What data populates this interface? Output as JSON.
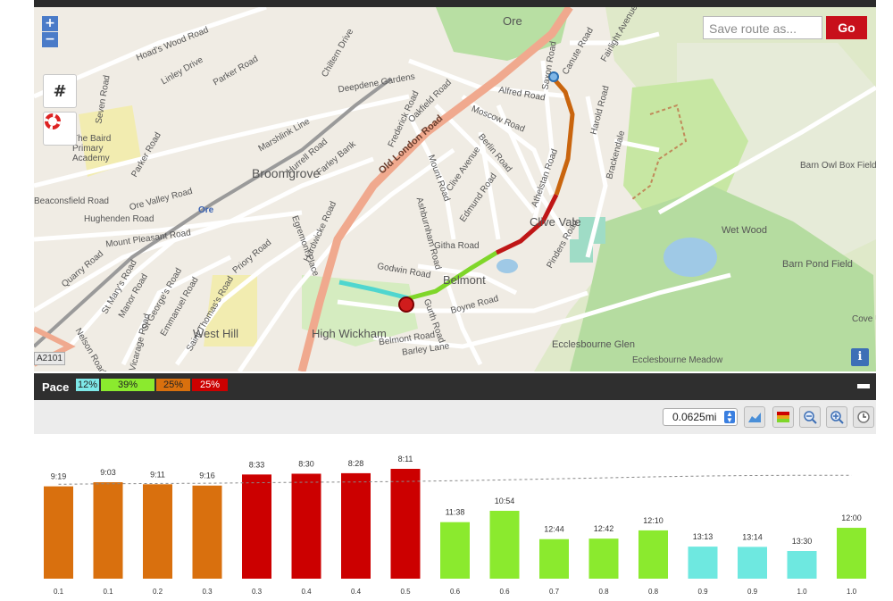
{
  "map": {
    "zoom_in_label": "+",
    "zoom_out_label": "−",
    "save_placeholder": "Save route as...",
    "go_label": "Go",
    "info_label": "i",
    "scale_badge": "A2101",
    "places": [
      "Ore",
      "Broomgrove",
      "Clive Vale",
      "Belmont",
      "High Wickham",
      "West Hill",
      "Ecclesbourne Glen",
      "Wet Wood",
      "Barn Pond Field",
      "Barn Owl Box Field",
      "The Baird Primary Academy",
      "Ore",
      "Ecclesbourne Meadow",
      "Cove Unde"
    ],
    "roads": [
      "Hoad's Wood Road",
      "Linley Drive",
      "Parker Road",
      "Chiltern Drive",
      "Deepdene Gardens",
      "Oakfield Road",
      "Frederick Road",
      "Old London Road",
      "Alfred Road",
      "Moscow Road",
      "Berlin Road",
      "Clive Avenue",
      "Mount Road",
      "Edmund Road",
      "Athelstan Road",
      "Githa Road",
      "Godwin Road",
      "Boyne Road",
      "Gurth Road",
      "Belmont Road",
      "Barley Lane",
      "Pinders Road",
      "Harold Road",
      "Brackendale",
      "Saxon Road",
      "Canute Road",
      "Fairlight Avenue",
      "Hughenden Road",
      "Beaconsfield Road",
      "Mount Pleasant Road",
      "Quarry Road",
      "St Mary's Road",
      "Manor Road",
      "St George's Road",
      "Emmanuel Road",
      "Saint Thomas's Road",
      "Priory Road",
      "Egremont Place",
      "Hardwicke Road",
      "Ashburnham Road",
      "Farley Bank",
      "Hurrell Road",
      "Marshlink Line",
      "Vicarage Road",
      "Nelson Road",
      "Ore Valley Road",
      "Parker Road",
      "Seven Road"
    ]
  },
  "pace_panel": {
    "title": "Pace",
    "segments": [
      {
        "label": "12%",
        "color": "#7ee8e8"
      },
      {
        "label": "39%",
        "color": "#8bea2e"
      },
      {
        "label": "25%",
        "color": "#d9700e"
      },
      {
        "label": "25%",
        "color": "#cc0000"
      }
    ]
  },
  "toolbar": {
    "interval_value": "0.0625mi",
    "buttons": [
      "area-chart-icon",
      "color-scale-icon",
      "zoom-out-icon",
      "zoom-in-icon",
      "clock-icon"
    ]
  },
  "chart_data": {
    "type": "bar",
    "categories": [
      "0.1",
      "0.1",
      "0.2",
      "0.3",
      "0.3",
      "0.4",
      "0.4",
      "0.5",
      "0.6",
      "0.6",
      "0.7",
      "0.8",
      "0.8",
      "0.9",
      "0.9",
      "1.0",
      "1.0"
    ],
    "labels": [
      "9:19",
      "9:03",
      "9:11",
      "9:16",
      "8:33",
      "8:30",
      "8:28",
      "8:11",
      "11:38",
      "10:54",
      "12:44",
      "12:42",
      "12:10",
      "13:13",
      "13:14",
      "13:30",
      "12:00"
    ],
    "values": [
      559,
      543,
      551,
      556,
      513,
      510,
      508,
      491,
      698,
      654,
      764,
      762,
      730,
      793,
      794,
      810,
      720
    ],
    "trend": [
      551,
      549,
      548,
      547,
      545,
      543,
      542,
      540,
      537,
      534,
      530,
      526,
      522,
      519,
      517,
      516,
      516
    ],
    "colors": [
      "#d9700e",
      "#d9700e",
      "#d9700e",
      "#d9700e",
      "#cc0000",
      "#cc0000",
      "#cc0000",
      "#cc0000",
      "#8bea2e",
      "#8bea2e",
      "#8bea2e",
      "#8bea2e",
      "#8bea2e",
      "#6ee8e0",
      "#6ee8e0",
      "#6ee8e0",
      "#8bea2e"
    ],
    "ylabel": "",
    "xlabel": ""
  }
}
